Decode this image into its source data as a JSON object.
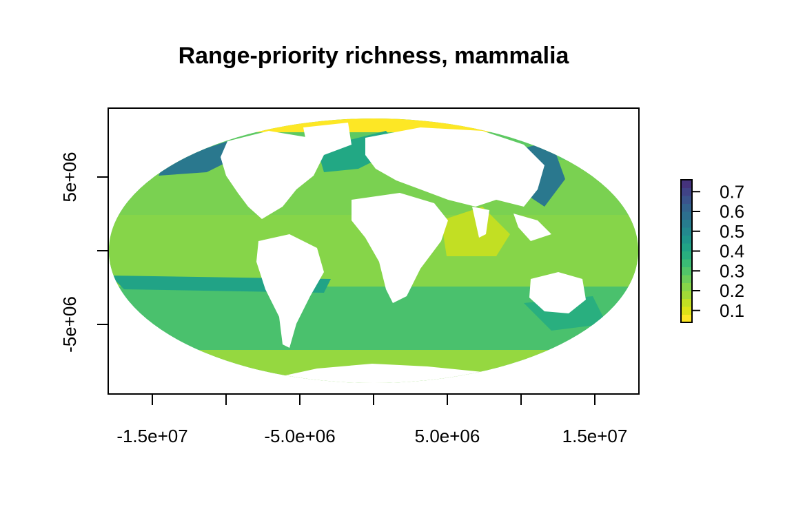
{
  "title": "Range-priority richness, mammalia",
  "map": {
    "projection": "Mollweide",
    "land_color": "#ffffff",
    "ocean_zones": [
      {
        "band": "far north polar",
        "value": 0.08,
        "color": "#fde725"
      },
      {
        "band": "north high latitudes",
        "value": 0.25,
        "color": "#5ec962"
      },
      {
        "band": "north temperate",
        "value": 0.2,
        "color": "#7ad151"
      },
      {
        "band": "tropics",
        "value": 0.17,
        "color": "#86d549"
      },
      {
        "band": "southern ocean",
        "value": 0.25,
        "color": "#4ac16d"
      },
      {
        "band": "antarctic margin",
        "value": 0.18,
        "color": "#95d840"
      }
    ],
    "hotspots": [
      {
        "region": "northern Indian Ocean",
        "value": 0.12,
        "color": "#c2df23"
      },
      {
        "region": "western Pacific coast",
        "value": 0.45,
        "color": "#2a788e"
      },
      {
        "region": "northeast Pacific",
        "value": 0.45,
        "color": "#2a788e"
      },
      {
        "region": "North Atlantic",
        "value": 0.4,
        "color": "#22a884"
      }
    ]
  },
  "x_axis": {
    "ticks": [
      -15000000,
      -10000000,
      -5000000,
      0,
      5000000,
      10000000,
      15000000
    ],
    "labels": [
      "-1.5e+07",
      "",
      "-5.0e+06",
      "",
      "5.0e+06",
      "",
      "1.5e+07"
    ]
  },
  "y_axis": {
    "ticks": [
      5000000,
      0,
      -5000000
    ],
    "labels": [
      "5e+06",
      "",
      "-5e+06"
    ]
  },
  "legend": {
    "range": [
      0.04,
      0.76
    ],
    "breaks": [
      0.04,
      0.08,
      0.12,
      0.16,
      0.2,
      0.24,
      0.28,
      0.32,
      0.36,
      0.4,
      0.44,
      0.48,
      0.52,
      0.56,
      0.6,
      0.64,
      0.68,
      0.72,
      0.76
    ],
    "colors": [
      "#fde725",
      "#dde318",
      "#c2df23",
      "#a2da37",
      "#86d549",
      "#6ccd5a",
      "#52c569",
      "#3bbb75",
      "#29af7f",
      "#21a386",
      "#1f968b",
      "#23898e",
      "#277c8e",
      "#2d6f8e",
      "#33638d",
      "#3a548c",
      "#404387",
      "#45337d",
      "#481f70"
    ],
    "ticks": [
      "0.1",
      "0.2",
      "0.3",
      "0.4",
      "0.5",
      "0.6",
      "0.7"
    ],
    "tick_values": [
      0.1,
      0.2,
      0.3,
      0.4,
      0.5,
      0.6,
      0.7
    ]
  }
}
